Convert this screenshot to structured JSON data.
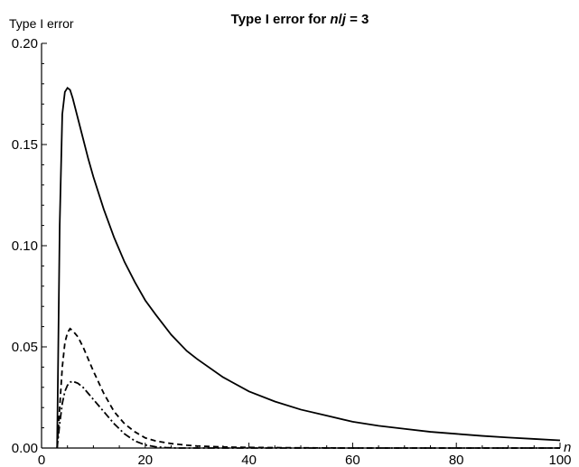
{
  "chart_data": {
    "type": "line",
    "title_parts": [
      "Type I error for ",
      "n",
      "/",
      "j",
      " = 3"
    ],
    "ylabel": "Type I error",
    "xlabel": "n",
    "xlim": [
      0,
      100
    ],
    "ylim": [
      0,
      0.2
    ],
    "x_ticks": [
      {
        "value": 0,
        "label": "0"
      },
      {
        "value": 20,
        "label": "20"
      },
      {
        "value": 40,
        "label": "40"
      },
      {
        "value": 60,
        "label": "60"
      },
      {
        "value": 80,
        "label": "80"
      },
      {
        "value": 100,
        "label": "100"
      }
    ],
    "y_ticks": [
      {
        "value": 0,
        "label": "0.00"
      },
      {
        "value": 0.05,
        "label": "0.05"
      },
      {
        "value": 0.1,
        "label": "0.10"
      },
      {
        "value": 0.15,
        "label": "0.15"
      },
      {
        "value": 0.2,
        "label": "0.20"
      }
    ],
    "grid": false,
    "series": [
      {
        "style": "solid",
        "x": [
          3,
          3.5,
          4,
          4.5,
          5,
          5.5,
          6,
          7,
          8,
          9,
          10,
          12,
          14,
          16,
          18,
          20,
          22,
          25,
          28,
          30,
          35,
          40,
          45,
          50,
          55,
          60,
          65,
          70,
          75,
          80,
          85,
          90,
          95,
          100
        ],
        "y": [
          0.0,
          0.11,
          0.165,
          0.176,
          0.178,
          0.177,
          0.173,
          0.163,
          0.153,
          0.143,
          0.134,
          0.118,
          0.104,
          0.092,
          0.082,
          0.073,
          0.066,
          0.056,
          0.048,
          0.044,
          0.035,
          0.028,
          0.023,
          0.019,
          0.016,
          0.013,
          0.011,
          0.0095,
          0.008,
          0.007,
          0.006,
          0.0052,
          0.0045,
          0.0038
        ]
      },
      {
        "style": "dashed",
        "x": [
          3,
          3.5,
          4,
          4.5,
          5,
          5.5,
          6,
          7,
          8,
          9,
          10,
          12,
          14,
          16,
          18,
          20,
          22,
          25,
          28,
          30,
          35,
          40,
          45,
          50,
          60,
          70,
          80,
          90,
          100
        ],
        "y": [
          0.0,
          0.02,
          0.04,
          0.052,
          0.057,
          0.059,
          0.058,
          0.055,
          0.05,
          0.044,
          0.038,
          0.027,
          0.018,
          0.012,
          0.008,
          0.005,
          0.0035,
          0.0022,
          0.0014,
          0.001,
          0.0005,
          0.0003,
          0.0002,
          0.0001,
          0.0,
          0.0,
          0.0,
          0.0,
          0.0
        ]
      },
      {
        "style": "dotdashed",
        "x": [
          3,
          3.5,
          4,
          4.5,
          5,
          5.5,
          6,
          7,
          8,
          9,
          10,
          12,
          14,
          16,
          18,
          20,
          22,
          24,
          25,
          26,
          28,
          30,
          40,
          50,
          60,
          70,
          80,
          90,
          100
        ],
        "y": [
          0.0,
          0.012,
          0.022,
          0.028,
          0.031,
          0.0325,
          0.033,
          0.032,
          0.03,
          0.027,
          0.024,
          0.018,
          0.012,
          0.007,
          0.0035,
          0.0015,
          0.0006,
          0.0002,
          0.0001,
          0.0,
          0.0,
          0.0,
          0.0,
          0.0,
          0.0,
          0.0,
          0.0,
          0.0,
          0.0
        ]
      }
    ]
  }
}
